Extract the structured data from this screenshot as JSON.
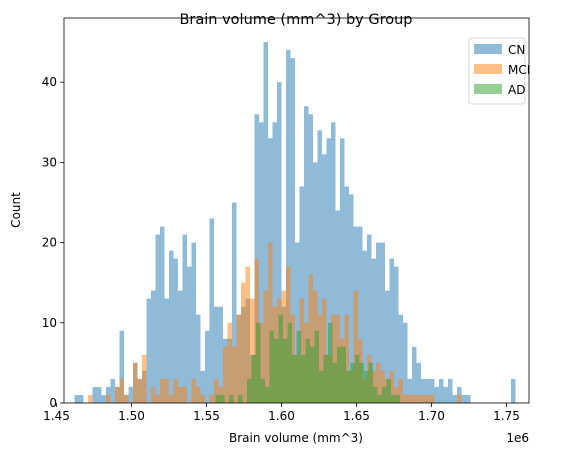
{
  "chart_data": {
    "type": "histogram",
    "title": "Brain volume (mm^3) by Group",
    "xlabel": "Brain volume (mm^3)",
    "ylabel": "Count",
    "offset_label": "1e6",
    "xlim": [
      1.455,
      1.765
    ],
    "ylim": [
      0,
      48
    ],
    "xticks": [
      1.45,
      1.5,
      1.55,
      1.6,
      1.65,
      1.7,
      1.75
    ],
    "xtick_labels": [
      "1.45",
      "1.50",
      "1.55",
      "1.60",
      "1.65",
      "1.70",
      "1.75"
    ],
    "yticks": [
      0,
      10,
      20,
      30,
      40
    ],
    "ytick_labels": [
      "0",
      "10",
      "20",
      "30",
      "40"
    ],
    "legend_position": "top-right",
    "bin_width": 0.003,
    "series": [
      {
        "name": "CN",
        "color": "#1f77b4",
        "opacity": 0.5,
        "x_start": 1.462,
        "counts": [
          1,
          1,
          0,
          0,
          2,
          2,
          1,
          2,
          3,
          2,
          9,
          1,
          2,
          5,
          3,
          4,
          13,
          14,
          21,
          22,
          13,
          19,
          18,
          14,
          21,
          17,
          20,
          11,
          4,
          9,
          23,
          12,
          12,
          8,
          8,
          25,
          11,
          12,
          13,
          6,
          36,
          35,
          45,
          33,
          35,
          40,
          12,
          44,
          43,
          20,
          27,
          37,
          36,
          30,
          34,
          31,
          33,
          35,
          24,
          33,
          27,
          26,
          22,
          22,
          19,
          21,
          18,
          20,
          20,
          14,
          18,
          17,
          11,
          10,
          3,
          7,
          5,
          3,
          3,
          3,
          2,
          3,
          2,
          3,
          1,
          2,
          1,
          1,
          0,
          0,
          0,
          0,
          0,
          0,
          0,
          0,
          0,
          3
        ]
      },
      {
        "name": "MCI",
        "color": "#ff7f0e",
        "opacity": 0.5,
        "x_start": 1.471,
        "counts": [
          1,
          0,
          0,
          0,
          1,
          0,
          2,
          3,
          1,
          0,
          5,
          3,
          6,
          0,
          2,
          1,
          3,
          3,
          1,
          3,
          2,
          2,
          0,
          3,
          2,
          1,
          0,
          1,
          3,
          2,
          7,
          10,
          7,
          11,
          15,
          17,
          13,
          18,
          10,
          14,
          20,
          12,
          13,
          14,
          17,
          11,
          6,
          13,
          10,
          16,
          14,
          11,
          13,
          6,
          11,
          11,
          8,
          11,
          4,
          14,
          8,
          3,
          6,
          4,
          5,
          4,
          3,
          4,
          2,
          3,
          1,
          1,
          1,
          1,
          1,
          1,
          1,
          0,
          0,
          0,
          0,
          0,
          1
        ]
      },
      {
        "name": "AD",
        "color": "#2ca02c",
        "opacity": 0.5,
        "x_start": 1.556,
        "counts": [
          1,
          1,
          0,
          1,
          0,
          1,
          0,
          3,
          6,
          10,
          3,
          2,
          9,
          8,
          11,
          8,
          10,
          6,
          9,
          6,
          8,
          7,
          9,
          4,
          6,
          10,
          5,
          7,
          7,
          4,
          5,
          6,
          5,
          4,
          5,
          2,
          1,
          2,
          3,
          1,
          1
        ]
      }
    ]
  }
}
